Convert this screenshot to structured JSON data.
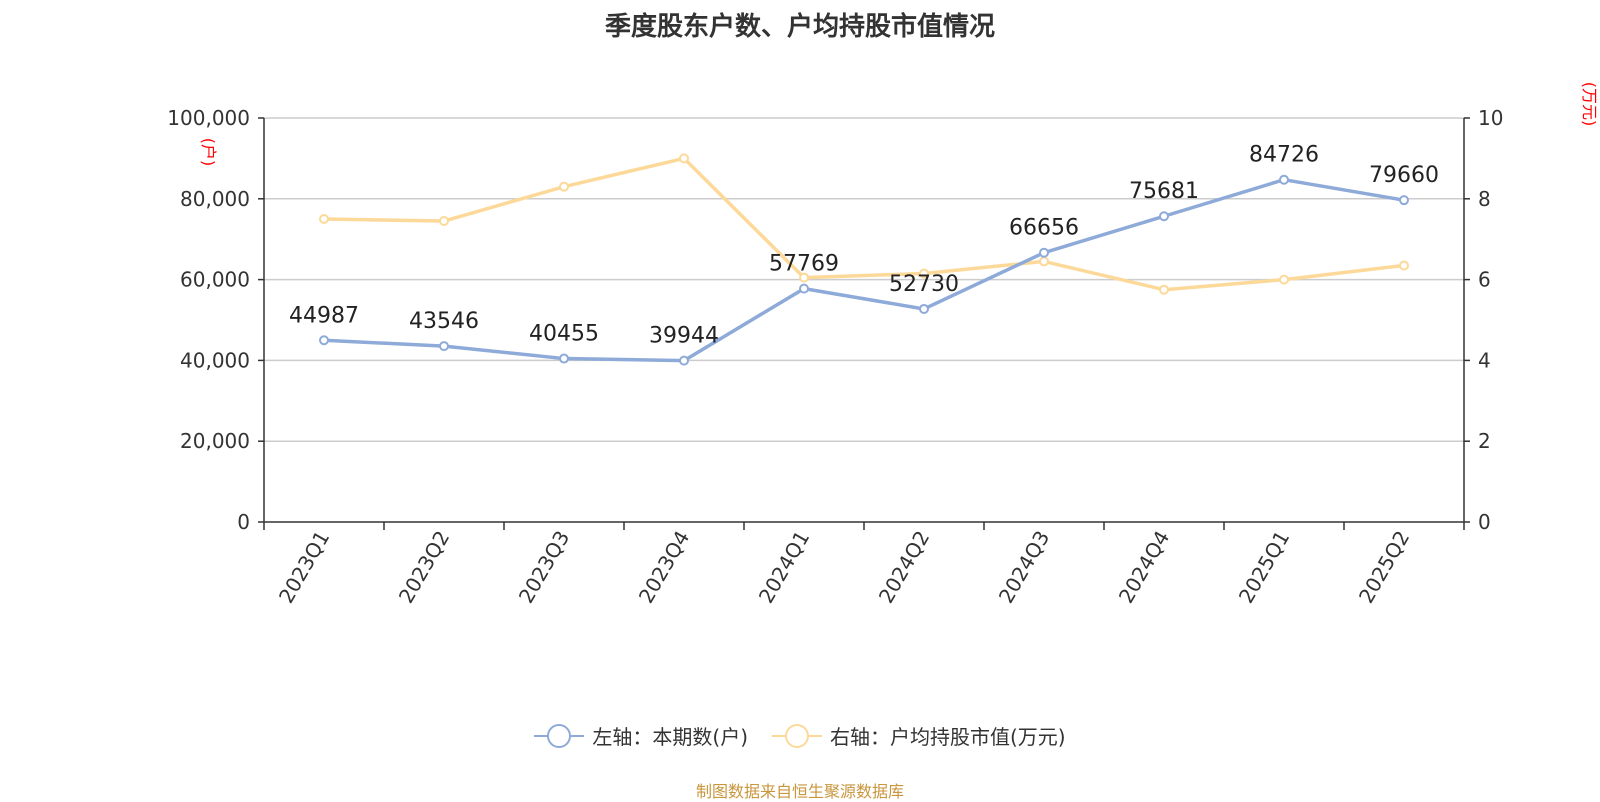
{
  "chart_data": {
    "type": "line",
    "title": "季度股东户数、户均持股市值情况",
    "categories": [
      "2023Q1",
      "2023Q2",
      "2023Q3",
      "2023Q4",
      "2024Q1",
      "2024Q2",
      "2024Q3",
      "2024Q4",
      "2025Q1",
      "2025Q2"
    ],
    "series": [
      {
        "name": "左轴：本期数(户)",
        "axis": "left",
        "color": "#8eaad9",
        "values": [
          44987,
          43546,
          40455,
          39944,
          57769,
          52730,
          66656,
          75681,
          84726,
          79660
        ],
        "show_labels": true
      },
      {
        "name": "右轴：户均持股市值(万元)",
        "axis": "right",
        "color": "#fdd999",
        "values": [
          7.5,
          7.45,
          8.3,
          9.0,
          6.05,
          6.15,
          6.45,
          5.75,
          6.0,
          6.35
        ],
        "show_labels": false
      }
    ],
    "left_axis": {
      "label": "(户)",
      "ylim": [
        0,
        100000
      ],
      "ticks": [
        "0",
        "20,000",
        "40,000",
        "60,000",
        "80,000",
        "100,000"
      ],
      "tick_values": [
        0,
        20000,
        40000,
        60000,
        80000,
        100000
      ]
    },
    "right_axis": {
      "label": "(万元)",
      "ylim": [
        0,
        10
      ],
      "ticks": [
        "0",
        "2",
        "4",
        "6",
        "8",
        "10"
      ],
      "tick_values": [
        0,
        2,
        4,
        6,
        8,
        10
      ]
    },
    "grid": true,
    "legend_position": "bottom-center",
    "axis_label_color": "#ff0000"
  },
  "source_text": "制图数据来自恒生聚源数据库",
  "source_color": "#c8963c"
}
